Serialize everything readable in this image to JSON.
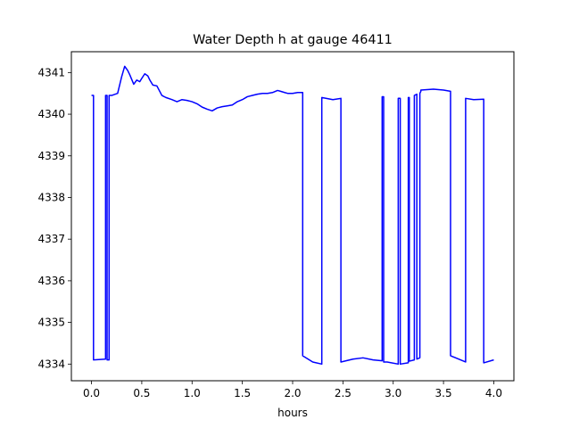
{
  "chart_data": {
    "type": "line",
    "title": "Water Depth h at gauge 46411",
    "xlabel": "hours",
    "ylabel": "",
    "xlim": [
      -0.2,
      4.2
    ],
    "ylim": [
      4333.6,
      4341.5
    ],
    "xticks": [
      0.0,
      0.5,
      1.0,
      1.5,
      2.0,
      2.5,
      3.0,
      3.5,
      4.0
    ],
    "xtick_labels": [
      "0.0",
      "0.5",
      "1.0",
      "1.5",
      "2.0",
      "2.5",
      "3.0",
      "3.5",
      "4.0"
    ],
    "yticks": [
      4334,
      4335,
      4336,
      4337,
      4338,
      4339,
      4340,
      4341
    ],
    "ytick_labels": [
      "4334",
      "4335",
      "4336",
      "4337",
      "4338",
      "4339",
      "4340",
      "4341"
    ],
    "grid": false,
    "series": [
      {
        "color": "#0000ff",
        "x": [
          0.0,
          0.02,
          0.02,
          0.14,
          0.14,
          0.155,
          0.155,
          0.175,
          0.175,
          0.2,
          0.2,
          0.26,
          0.3,
          0.33,
          0.36,
          0.38,
          0.42,
          0.45,
          0.48,
          0.5,
          0.53,
          0.56,
          0.58,
          0.61,
          0.65,
          0.7,
          0.74,
          0.8,
          0.85,
          0.9,
          0.95,
          1.0,
          1.05,
          1.1,
          1.15,
          1.2,
          1.25,
          1.3,
          1.35,
          1.4,
          1.45,
          1.5,
          1.55,
          1.6,
          1.65,
          1.7,
          1.75,
          1.8,
          1.85,
          1.88,
          1.92,
          1.95,
          2.0,
          2.05,
          2.1,
          2.1,
          2.2,
          2.29,
          2.29,
          2.4,
          2.48,
          2.48,
          2.6,
          2.7,
          2.8,
          2.89,
          2.89,
          2.905,
          2.905,
          2.94,
          2.94,
          3.05,
          3.05,
          3.07,
          3.07,
          3.15,
          3.15,
          3.16,
          3.16,
          3.21,
          3.21,
          3.235,
          3.235,
          3.265,
          3.265,
          3.275,
          3.275,
          3.4,
          3.5,
          3.57,
          3.57,
          3.72,
          3.72,
          3.8,
          3.9,
          3.9,
          4.0
        ],
        "y": [
          4340.45,
          4340.45,
          4334.1,
          4334.12,
          4340.45,
          4340.45,
          4334.1,
          4334.1,
          4340.45,
          4340.45,
          4340.45,
          4340.5,
          4340.9,
          4341.15,
          4341.05,
          4340.95,
          4340.72,
          4340.82,
          4340.78,
          4340.86,
          4340.97,
          4340.92,
          4340.82,
          4340.7,
          4340.68,
          4340.45,
          4340.4,
          4340.35,
          4340.3,
          4340.35,
          4340.33,
          4340.3,
          4340.25,
          4340.17,
          4340.12,
          4340.08,
          4340.15,
          4340.18,
          4340.2,
          4340.22,
          4340.3,
          4340.35,
          4340.42,
          4340.45,
          4340.48,
          4340.5,
          4340.5,
          4340.52,
          4340.57,
          4340.55,
          4340.52,
          4340.5,
          4340.5,
          4340.52,
          4340.52,
          4334.2,
          4334.05,
          4334.0,
          4340.4,
          4340.35,
          4340.38,
          4334.05,
          4334.12,
          4334.15,
          4334.1,
          4334.08,
          4340.42,
          4340.42,
          4334.05,
          4334.05,
          4334.05,
          4334.0,
          4340.38,
          4340.38,
          4334.0,
          4334.03,
          4340.4,
          4340.4,
          4334.07,
          4334.1,
          4340.45,
          4340.48,
          4334.12,
          4334.15,
          4340.5,
          4340.55,
          4340.58,
          4340.6,
          4340.58,
          4340.55,
          4334.2,
          4334.05,
          4340.38,
          4340.35,
          4340.36,
          4334.03,
          4334.1
        ]
      }
    ]
  }
}
